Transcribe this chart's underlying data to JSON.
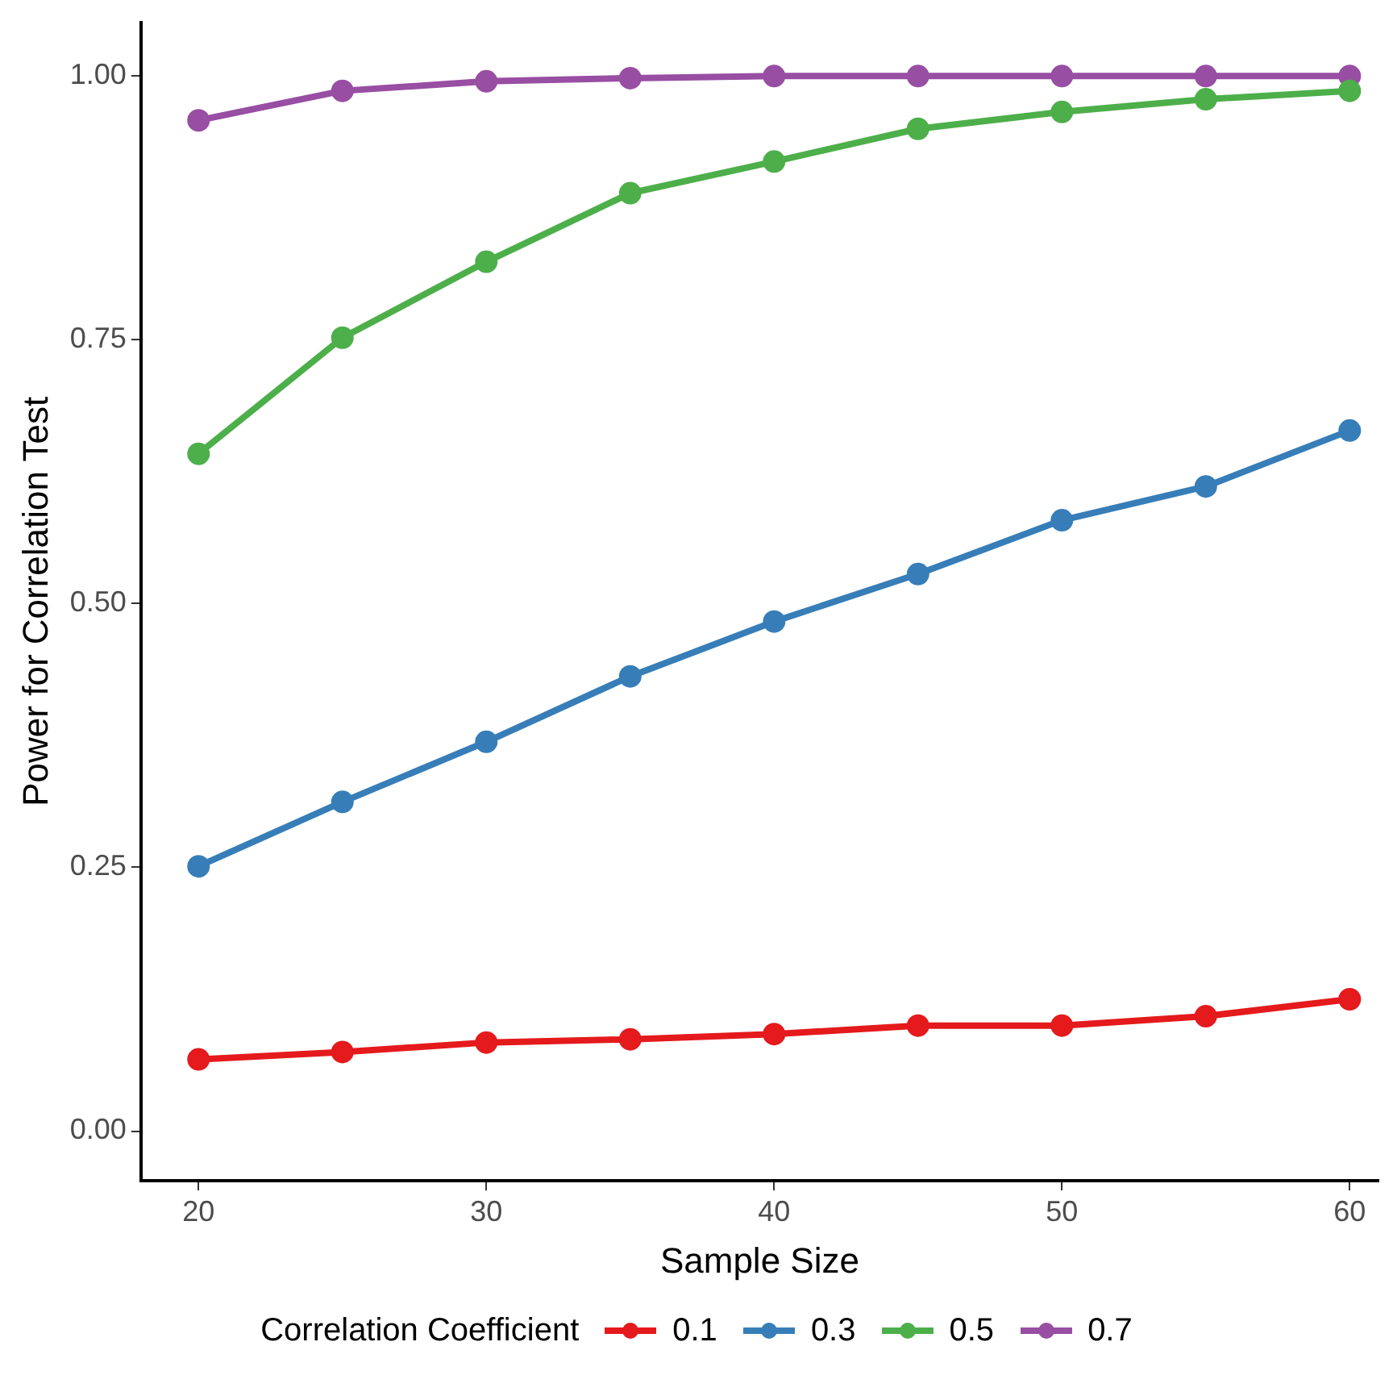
{
  "chart_data": {
    "type": "line",
    "xlabel": "Sample Size",
    "ylabel": "Power for Correlation Test",
    "legend_title": "Correlation Coefficient",
    "legend": "bottom",
    "marker": "circle",
    "line_style": "solid",
    "grid": false,
    "x": [
      20,
      25,
      30,
      35,
      40,
      45,
      50,
      55,
      60
    ],
    "xlim": [
      18,
      61
    ],
    "xticks": [
      20,
      30,
      40,
      50,
      60
    ],
    "ylim": [
      -0.047,
      1.051
    ],
    "yticks": [
      {
        "value": 0,
        "label": "0.00"
      },
      {
        "value": 0.25,
        "label": "0.25"
      },
      {
        "value": 0.5,
        "label": "0.50"
      },
      {
        "value": 0.75,
        "label": "0.75"
      },
      {
        "value": 1,
        "label": "1.00"
      }
    ],
    "series": [
      {
        "name": "0.1",
        "color": "#e41a1c",
        "values": [
          0.068,
          0.075,
          0.084,
          0.087,
          0.092,
          0.1,
          0.1,
          0.109,
          0.125
        ]
      },
      {
        "name": "0.3",
        "color": "#377eb8",
        "values": [
          0.251,
          0.312,
          0.369,
          0.431,
          0.483,
          0.528,
          0.579,
          0.611,
          0.664
        ]
      },
      {
        "name": "0.5",
        "color": "#4daf4a",
        "values": [
          0.642,
          0.752,
          0.824,
          0.889,
          0.919,
          0.95,
          0.966,
          0.978,
          0.986
        ]
      },
      {
        "name": "0.7",
        "color": "#984ea3",
        "values": [
          0.958,
          0.986,
          0.995,
          0.998,
          1,
          1,
          1,
          1,
          1
        ]
      }
    ]
  }
}
